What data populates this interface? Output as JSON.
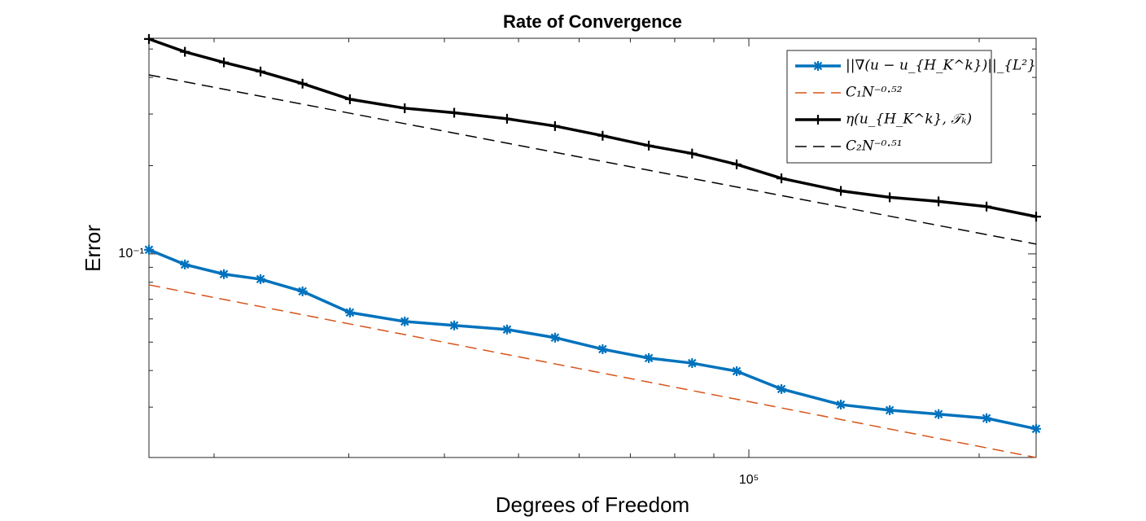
{
  "chart_data": {
    "type": "line",
    "title": "Rate of Convergence",
    "xlabel": "Degrees of Freedom",
    "ylabel": "Error",
    "xscale": "log",
    "yscale": "log",
    "xlim": [
      16440,
      237400
    ],
    "ylim": [
      0.0202,
      0.544
    ],
    "xticks": [
      {
        "value": 100000,
        "label": "10⁵"
      }
    ],
    "yticks": [
      {
        "value": 0.1,
        "label": "10⁻¹"
      }
    ],
    "xminor": [
      20000,
      30000,
      40000,
      50000,
      60000,
      70000,
      80000,
      90000,
      200000
    ],
    "yminor": [
      0.03,
      0.04,
      0.05,
      0.06,
      0.07,
      0.08,
      0.09,
      0.2,
      0.3,
      0.4,
      0.5
    ],
    "legend_position": "northeast",
    "series": [
      {
        "name": "||∇(u − u_{H_K^k})||_{L²}",
        "color": "#0072BD",
        "marker": "asterisk",
        "dash": "solid",
        "x": [
          16440,
          18320,
          20600,
          23000,
          26100,
          30100,
          35500,
          41200,
          48300,
          55800,
          64400,
          74000,
          84300,
          96400,
          110300,
          131900,
          152800,
          177000,
          204500,
          237400
        ],
        "values": [
          0.1033,
          0.092,
          0.0853,
          0.082,
          0.0745,
          0.0631,
          0.0588,
          0.057,
          0.0552,
          0.0518,
          0.0473,
          0.0441,
          0.0424,
          0.0398,
          0.0346,
          0.0306,
          0.0293,
          0.0284,
          0.0275,
          0.0253
        ]
      },
      {
        "name": "C₁N⁻⁰·⁵²",
        "color": "#D95319",
        "marker": "none",
        "dash": "dashed",
        "x": [
          16440,
          237400
        ],
        "values": [
          0.0784,
          0.0202
        ]
      },
      {
        "name": "η(u_{H_K^k}, 𝒯ₖ)",
        "color": "#000000",
        "marker": "plus",
        "dash": "solid",
        "x": [
          16440,
          18320,
          20600,
          23000,
          26100,
          30100,
          35500,
          41200,
          48300,
          55800,
          64400,
          74000,
          84300,
          96400,
          110300,
          131900,
          152800,
          177000,
          204500,
          237400
        ],
        "values": [
          0.541,
          0.489,
          0.45,
          0.419,
          0.381,
          0.337,
          0.314,
          0.303,
          0.289,
          0.273,
          0.253,
          0.234,
          0.22,
          0.202,
          0.181,
          0.164,
          0.156,
          0.151,
          0.145,
          0.134
        ]
      },
      {
        "name": "C₂N⁻⁰·⁵¹",
        "color": "#000000",
        "marker": "none",
        "dash": "dashed",
        "x": [
          16440,
          237400
        ],
        "values": [
          0.408,
          0.108
        ]
      }
    ]
  }
}
